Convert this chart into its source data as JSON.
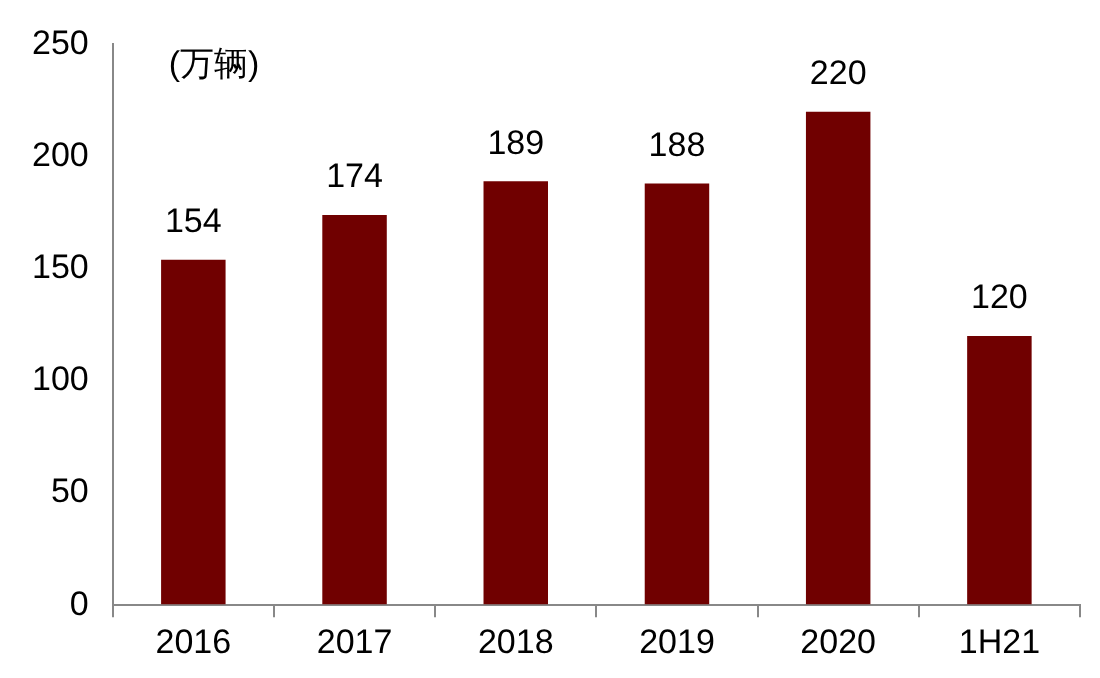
{
  "chart_data": {
    "type": "bar",
    "categories": [
      "2016",
      "2017",
      "2018",
      "2019",
      "2020",
      "1H21"
    ],
    "values": [
      154,
      174,
      189,
      188,
      220,
      120
    ],
    "color": "#700000",
    "ylim": [
      0,
      250
    ],
    "yticks": [
      0,
      50,
      100,
      150,
      200,
      250
    ],
    "grid": false,
    "legend": false,
    "data_labels": true,
    "annotations": [
      "(万辆)"
    ]
  }
}
